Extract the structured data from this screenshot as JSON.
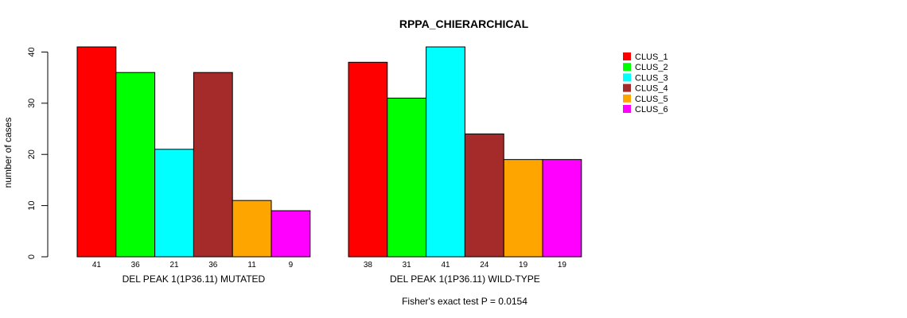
{
  "chart_data": {
    "type": "bar",
    "title": "RPPA_CHIERARCHICAL",
    "ylabel": "number of cases",
    "ylim": [
      0,
      41
    ],
    "yticks": [
      0,
      10,
      20,
      30,
      40
    ],
    "legend_position": "top-right",
    "series": [
      {
        "name": "CLUS_1",
        "color": "#ff0000"
      },
      {
        "name": "CLUS_2",
        "color": "#00ff00"
      },
      {
        "name": "CLUS_3",
        "color": "#00ffff"
      },
      {
        "name": "CLUS_4",
        "color": "#a52a2a"
      },
      {
        "name": "CLUS_5",
        "color": "#ffa500"
      },
      {
        "name": "CLUS_6",
        "color": "#ff00ff"
      }
    ],
    "groups": [
      {
        "label": "DEL PEAK  1(1P36.11) MUTATED",
        "values": [
          41,
          36,
          21,
          36,
          11,
          9
        ]
      },
      {
        "label": "DEL PEAK  1(1P36.11) WILD-TYPE",
        "values": [
          38,
          31,
          41,
          24,
          19,
          19
        ]
      }
    ],
    "footnote": "Fisher's exact test P = 0.0154"
  }
}
